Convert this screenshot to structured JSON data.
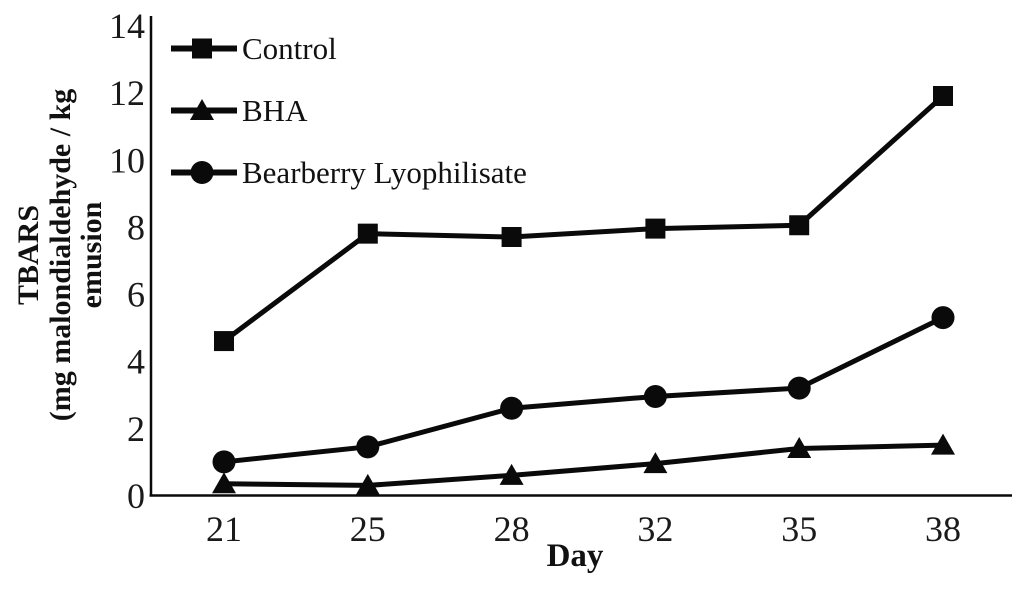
{
  "figure": {
    "background": "#ffffff",
    "ink_color": "#0a0a0a"
  },
  "chart_data": {
    "type": "line",
    "title": "",
    "xlabel": "Day",
    "ylabel_lines": [
      "TBARS",
      "(mg malondialdehyde / kg",
      "emusion"
    ],
    "x_categories": [
      21,
      25,
      28,
      32,
      35,
      38
    ],
    "y_ticks": [
      0,
      2,
      4,
      6,
      8,
      10,
      12,
      14
    ],
    "ylim": [
      0,
      14
    ],
    "grid": false,
    "legend_position": "top-left-inside",
    "line_color": "#0a0a0a",
    "series": [
      {
        "name": "Control",
        "marker": "square",
        "values": [
          4.6,
          7.8,
          7.7,
          7.95,
          8.05,
          11.9
        ]
      },
      {
        "name": "BHA",
        "marker": "triangle",
        "values": [
          0.35,
          0.3,
          0.6,
          0.95,
          1.4,
          1.5
        ]
      },
      {
        "name": "Bearberry Lyophilisate",
        "marker": "circle",
        "values": [
          1.0,
          1.45,
          2.6,
          2.95,
          3.2,
          5.3
        ]
      }
    ]
  }
}
